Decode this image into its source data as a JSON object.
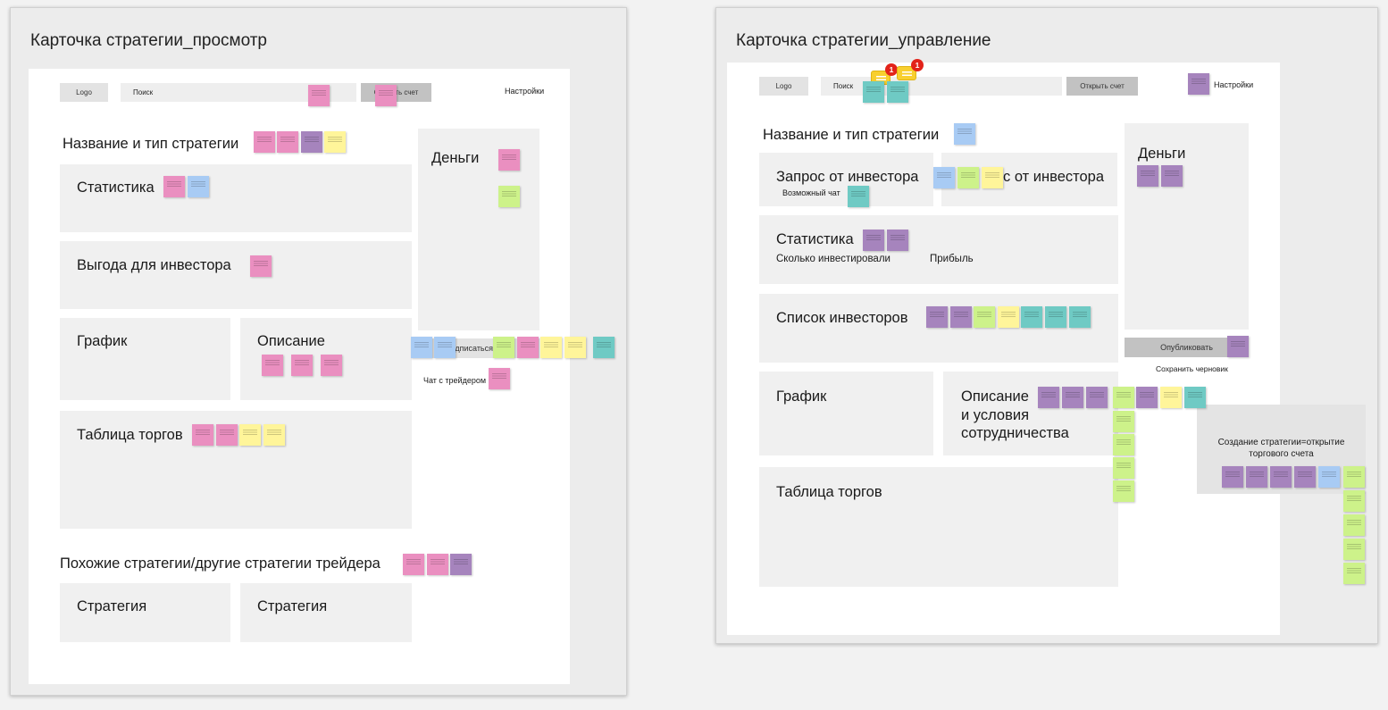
{
  "frames": {
    "view": {
      "title": "Карточка стратегии_просмотр",
      "header": {
        "logo": "Logo",
        "search_placeholder": "Поиск",
        "open_account": "Открыть счет",
        "settings": "Настройки"
      },
      "sections": {
        "name_type": "Название и тип стратегии",
        "statistics": "Статистика",
        "benefit": "Выгода для инвестора",
        "chart": "График",
        "description": "Описание",
        "trades_table": "Таблица торгов",
        "money": "Деньги",
        "subscribe": "Подписаться",
        "chat_trader": "Чат с трейдером",
        "similar": "Похожие стратегии/другие стратегии трейдера",
        "strategy_1": "Стратегия",
        "strategy_2": "Стратегия"
      }
    },
    "manage": {
      "title": "Карточка стратегии_управление",
      "header": {
        "logo": "Logo",
        "search_placeholder": "Поиск",
        "open_account": "Открыть счет",
        "settings": "Настройки"
      },
      "comment_badges": [
        {
          "count": "1"
        },
        {
          "count": "1"
        }
      ],
      "sections": {
        "name_type": "Название и тип стратегии",
        "investor_request": "Запрос от инвестора",
        "possible_chat": "Возможный чат",
        "investor_request_2": "Запрос от инвестора",
        "statistics": "Статистика",
        "how_much_invested": "Сколько инвестировали",
        "profit": "Прибыль",
        "investors_list": "Список инвесторов",
        "chart": "График",
        "description_terms": "Описание\nи условия\nсотрудничества",
        "trades_table": "Таблица торгов",
        "money": "Деньги",
        "publish": "Опубликовать",
        "save_draft": "Сохранить черновик",
        "create_strategy": "Создание стратегии=открытие торгового счета"
      }
    }
  },
  "note_colors": {
    "pink": "#ea8fc0",
    "purple": "#a684bd",
    "yellow": "#fff59a",
    "green": "#cdf28a",
    "blue": "#a8cbf4",
    "teal": "#6fcac4"
  }
}
